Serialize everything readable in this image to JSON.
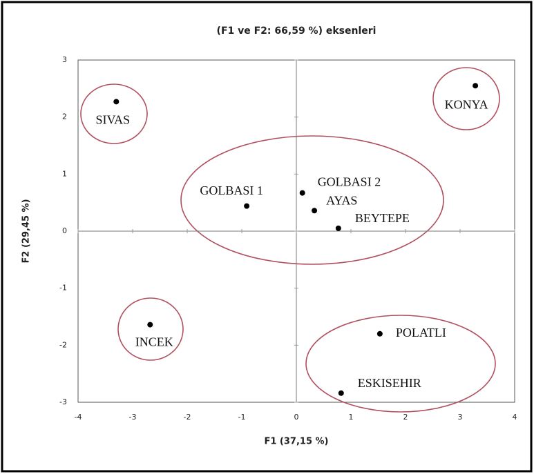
{
  "chart_data": {
    "type": "scatter",
    "title": "(F1 ve F2: 66,59 %) eksenleri",
    "x_label": "F1 (37,15 %)",
    "y_label": "F2 (29,45 %)",
    "point_labels": [
      "SIVAS",
      "KONYA",
      "GOLBASI  1",
      "GOLBASI  2",
      "AYAS",
      "BEYTEPE",
      "INCEK",
      "POLATLI",
      "ESKISEHIR"
    ],
    "x": [
      -3.3,
      3.28,
      -0.91,
      0.11,
      0.33,
      0.77,
      -2.68,
      1.53,
      0.82
    ],
    "values": [
      2.27,
      2.55,
      0.44,
      0.67,
      0.36,
      0.05,
      -1.64,
      -1.8,
      -2.84
    ],
    "color": "#000000",
    "xlim": [
      -4,
      4
    ],
    "xticks": [
      -4,
      -3,
      -2,
      -1,
      0,
      1,
      2,
      3,
      4
    ],
    "ylim": [
      -3,
      3
    ],
    "yticks": [
      -3,
      -2,
      -1,
      0,
      1,
      2,
      3
    ]
  }
}
